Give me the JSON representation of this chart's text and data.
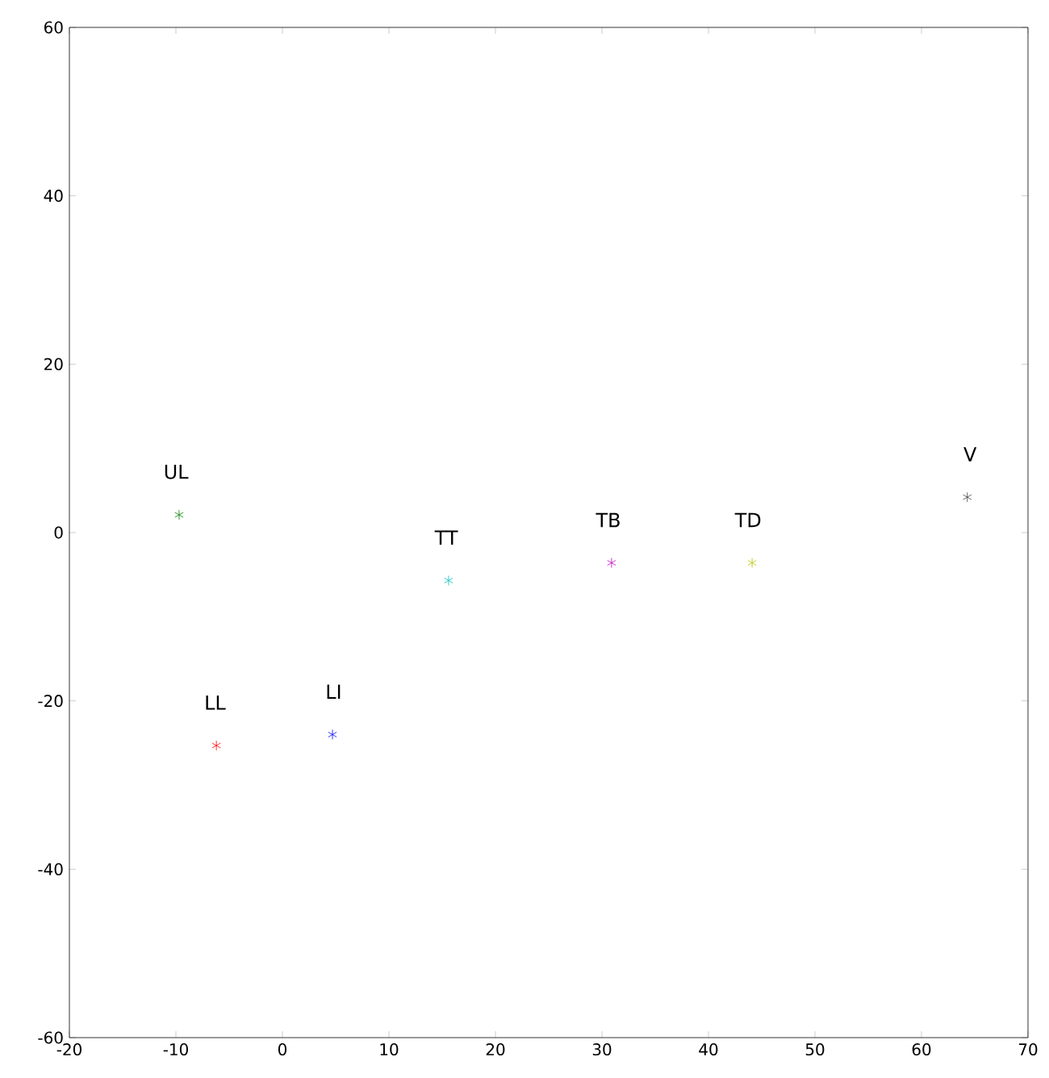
{
  "chart_data": {
    "type": "scatter",
    "marker": "cross",
    "grid": false,
    "xlim": [
      -20,
      70
    ],
    "ylim": [
      -60,
      60
    ],
    "xticks": [
      -20,
      -10,
      0,
      10,
      20,
      30,
      40,
      50,
      60,
      70
    ],
    "yticks": [
      -60,
      -40,
      -20,
      0,
      20,
      40,
      60
    ],
    "series": [
      {
        "name": "UL",
        "color": "#008000",
        "x": [
          -9.7
        ],
        "values": [
          2.1
        ]
      },
      {
        "name": "LL",
        "color": "#ff0000",
        "x": [
          -6.2
        ],
        "values": [
          -25.3
        ]
      },
      {
        "name": "LI",
        "color": "#0000ff",
        "x": [
          4.7
        ],
        "values": [
          -24
        ]
      },
      {
        "name": "TT",
        "color": "#00bfbf",
        "x": [
          15.6
        ],
        "values": [
          -5.7
        ]
      },
      {
        "name": "TB",
        "color": "#bf00bf",
        "x": [
          30.9
        ],
        "values": [
          -3.6
        ]
      },
      {
        "name": "TD",
        "color": "#bfbf00",
        "x": [
          44.1
        ],
        "values": [
          -3.6
        ]
      },
      {
        "name": "V",
        "color": "#404040",
        "x": [
          64.3
        ],
        "values": [
          4.2
        ]
      }
    ]
  }
}
